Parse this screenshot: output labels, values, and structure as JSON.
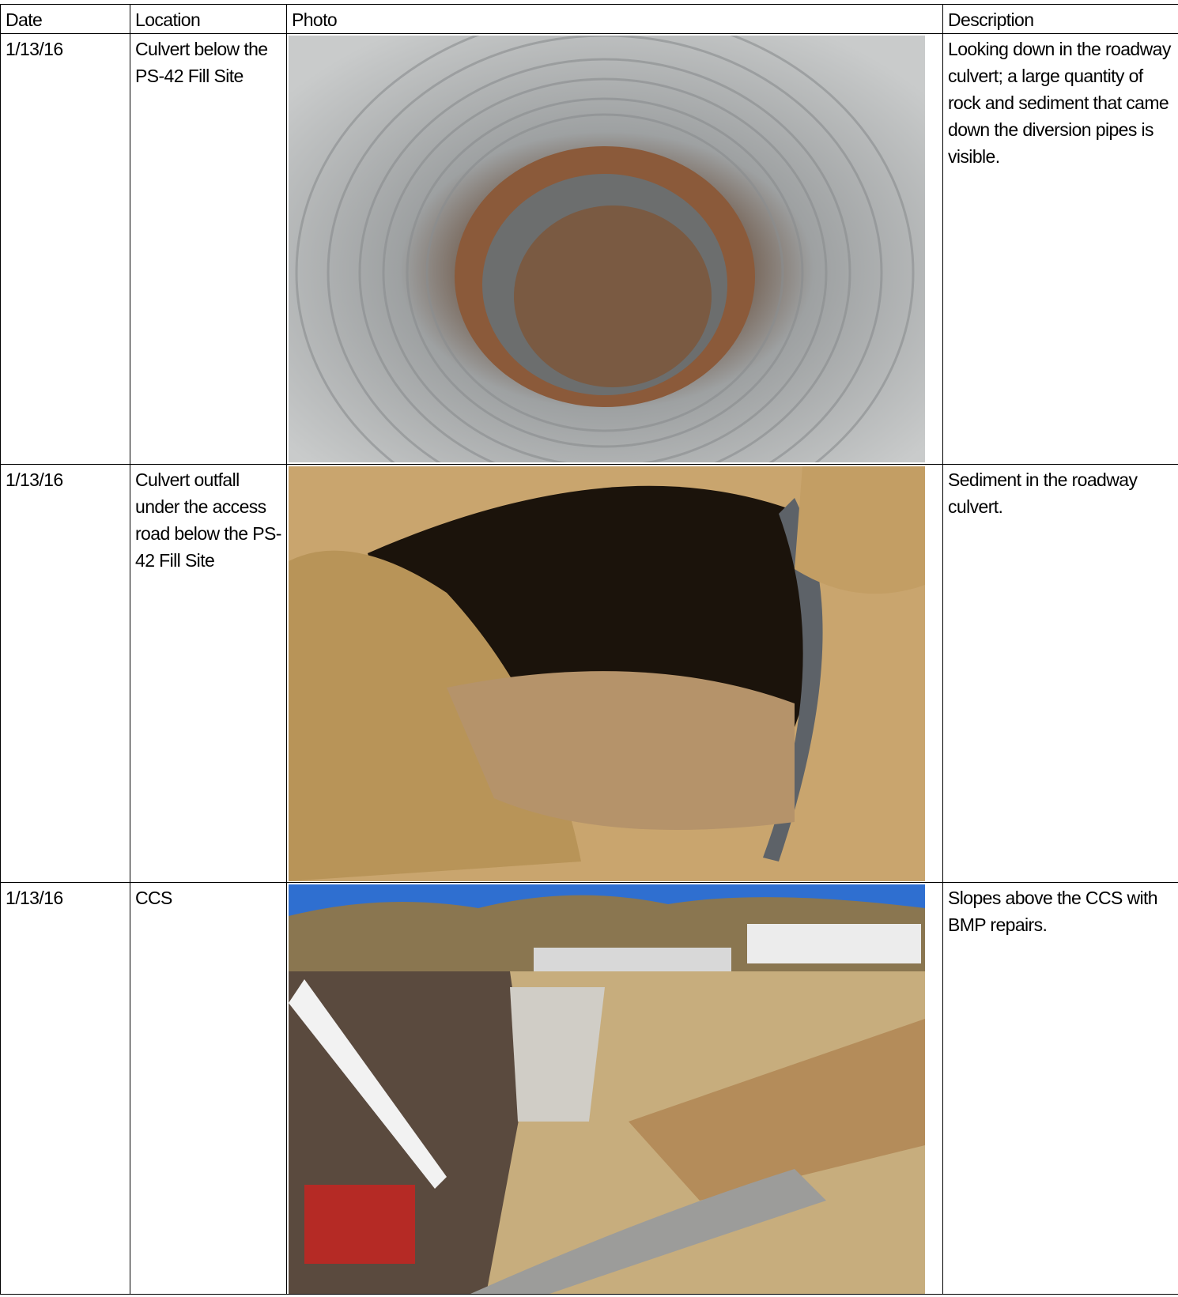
{
  "table": {
    "header": [
      "Date",
      "Location",
      "Photo",
      "Description"
    ],
    "rows": [
      {
        "date": "1/13/16",
        "location": "Culvert below the PS-42 Fill Site",
        "description": "Looking down in the roadway culvert; a large quantity of rock and sediment that came down the diversion pipes is visible."
      },
      {
        "date": "1/13/16",
        "location": "Culvert outfall under the access road below the PS-42 Fill Site",
        "description": "Sediment in the roadway culvert."
      },
      {
        "date": "1/13/16",
        "location": "CCS",
        "description": "Slopes above the CCS with BMP repairs."
      }
    ]
  }
}
